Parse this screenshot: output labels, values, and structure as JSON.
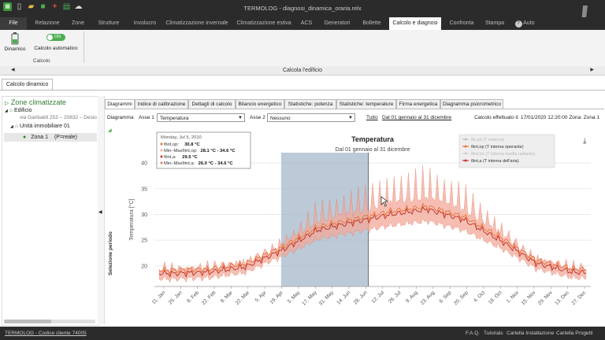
{
  "window": {
    "title": "TERMOLOG - diagnosi_dinamica_oraria.relx"
  },
  "menu": {
    "items": [
      {
        "label": "File"
      },
      {
        "label": "Relazione"
      },
      {
        "label": "Zone"
      },
      {
        "label": "Strutture"
      },
      {
        "label": "Involucro"
      },
      {
        "label": "Climatizzazione invernale"
      },
      {
        "label": "Climatizzazione estiva"
      },
      {
        "label": "ACS"
      },
      {
        "label": "Generatori"
      },
      {
        "label": "Bollette"
      },
      {
        "label": "Calcolo e diagnosi"
      },
      {
        "label": "Confronta"
      },
      {
        "label": "Stampa"
      }
    ],
    "auto_label": "Auto"
  },
  "ribbon": {
    "dinamico": "Dinamico",
    "toggle_state": "ON",
    "calcolo_automatico": "Calcolo automatico",
    "group_label": "Calcolo"
  },
  "calcola_bar": {
    "label": "Calcola l'edificio"
  },
  "doc_tab": {
    "label": "Calcolo dinamico"
  },
  "tree": {
    "header": "Zone climatizzate",
    "building": "Edificio",
    "address": "via Garibaldi 253 – 20832 – Desio",
    "unit": "Unità immobiliare 01",
    "zone": "Zona 1",
    "zone_extra": "(P=reale)"
  },
  "side_strip_label": "Selezione periodo",
  "tabs": [
    {
      "label": "Diagrammi"
    },
    {
      "label": "Indice di calibrazione"
    },
    {
      "label": "Dettagli di calcolo"
    },
    {
      "label": "Bilancio energetico"
    },
    {
      "label": "Statistiche: potenza"
    },
    {
      "label": "Statistiche: temperature"
    },
    {
      "label": "Firma energetica"
    },
    {
      "label": "Diagramma psicrometrico"
    }
  ],
  "toolbar": {
    "diagramma_label": "Diagramma",
    "asse1_label": "Asse 1",
    "asse1_value": "Temperatura",
    "asse2_label": "Asse 2",
    "asse2_value": "Nessuno",
    "tutto": "Tutto",
    "range": "Dal 01 gennaio al 31 dicembre",
    "info": "Calcolo effettuato il: 17/01/2020 12:20:00 Zona: Zona 1"
  },
  "chart_data": {
    "type": "line",
    "title": "Temperatura",
    "subtitle": "Dal 01 gennaio al 31 dicembre",
    "ylabel": "Temperatura [°C]",
    "ylim": [
      16,
      42
    ],
    "yticks": [
      20,
      25,
      30,
      35,
      40
    ],
    "x_ticks": [
      "11. Jan",
      "25. Jan",
      "8. Feb",
      "22. Feb",
      "8. Mar",
      "22. Mar",
      "5. Apr",
      "19. Apr",
      "3. May",
      "17. May",
      "31. May",
      "14. Jun",
      "28. Jun",
      "12. Jul",
      "26. Jul",
      "9. Aug",
      "23. Aug",
      "6. Sep",
      "20. Sep",
      "4. Oct",
      "18. Oct",
      "1. Nov",
      "15. Nov",
      "29. Nov",
      "13. Dec",
      "27. Dec"
    ],
    "legend": [
      {
        "label": "θe,air (T esterna)",
        "color": "#c0c0c0",
        "hidden": true
      },
      {
        "label": "θint,op (T interna operante)",
        "color": "#e8743b",
        "hidden": false
      },
      {
        "label": "θint,mr (T interna media radiante)",
        "color": "#d0d0d0",
        "hidden": true
      },
      {
        "label": "θint,a (T interna dell'aria)",
        "color": "#c0392b",
        "hidden": false
      }
    ],
    "legend_position": "top-right",
    "selection": {
      "from_day": 106,
      "to_day": 179
    },
    "monthly_mean_indoor": [
      18.5,
      18.8,
      19.8,
      23.0,
      27.0,
      28.5,
      30.0,
      31.0,
      29.0,
      25.0,
      20.5,
      18.8
    ],
    "tooltip": {
      "date": "Monday, Jul 5, 2010",
      "rows": [
        {
          "label": "θint,op:",
          "value": "30.8 °C"
        },
        {
          "label": "Min–Maxθint,op:",
          "value": "28.1 °C - 34.6 °C"
        },
        {
          "label": "θint,a:",
          "value": "29.5 °C"
        },
        {
          "label": "Min–Maxθint,a:",
          "value": "26.0 °C - 34.6 °C"
        }
      ]
    }
  },
  "status": {
    "left": "TERMOLOG - Codice cliente 74005",
    "items": [
      {
        "label": "F.A.Q."
      },
      {
        "label": "Tutorials"
      },
      {
        "label": "Cartella Installazione"
      },
      {
        "label": "Cartella Progetti"
      }
    ]
  },
  "colors": {
    "accent": "#2e7d32",
    "dark": "#2b2b2b",
    "selection": "#9fb3c8",
    "band": "#f3a99a",
    "line": "#c94c3a"
  }
}
